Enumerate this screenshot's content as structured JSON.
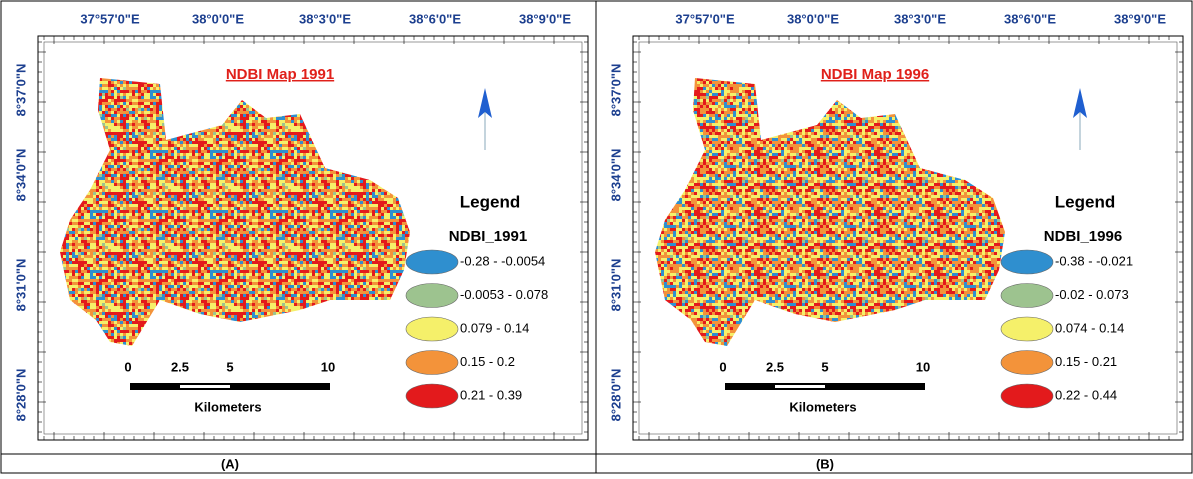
{
  "panels": [
    {
      "title": "NDBI  Map 1991",
      "x_labels": [
        "37°57'0\"E",
        "38°0'0\"E",
        "38°3'0\"E",
        "38°6'0\"E",
        "38°9'0\"E"
      ],
      "y_labels": [
        "8°37'0\"N",
        "8°34'0\"N",
        "8°31'0\"N",
        "8°28'0\"N"
      ],
      "legend": {
        "title": "Legend",
        "field": "NDBI_1991",
        "classes": [
          {
            "label": "-0.28 - -0.0054",
            "color": "#2f8fcf"
          },
          {
            "label": "-0.0053 - 0.078",
            "color": "#9dc38f"
          },
          {
            "label": "0.079 - 0.14",
            "color": "#f5f06a"
          },
          {
            "label": "0.15 - 0.2",
            "color": "#f3933a"
          },
          {
            "label": "0.21 - 0.39",
            "color": "#e31a1c"
          }
        ]
      },
      "scale": {
        "ticks": [
          "0",
          "2.5",
          "5",
          "10"
        ],
        "unit": "Kilometers"
      },
      "caption": "(A)"
    },
    {
      "title": "NDBI  Map 1996",
      "x_labels": [
        "37°57'0\"E",
        "38°0'0\"E",
        "38°3'0\"E",
        "38°6'0\"E",
        "38°9'0\"E"
      ],
      "y_labels": [
        "8°37'0\"N",
        "8°34'0\"N",
        "8°31'0\"N",
        "8°28'0\"N"
      ],
      "legend": {
        "title": "Legend",
        "field": "NDBI_1996",
        "classes": [
          {
            "label": "-0.38 - -0.021",
            "color": "#2f8fcf"
          },
          {
            "label": "-0.02 - 0.073",
            "color": "#9dc38f"
          },
          {
            "label": "0.074 - 0.14",
            "color": "#f5f06a"
          },
          {
            "label": "0.15 - 0.21",
            "color": "#f3933a"
          },
          {
            "label": "0.22 - 0.44",
            "color": "#e31a1c"
          }
        ]
      },
      "scale": {
        "ticks": [
          "0",
          "2.5",
          "5",
          "10"
        ],
        "unit": "Kilometers"
      },
      "caption": "(B)"
    }
  ]
}
